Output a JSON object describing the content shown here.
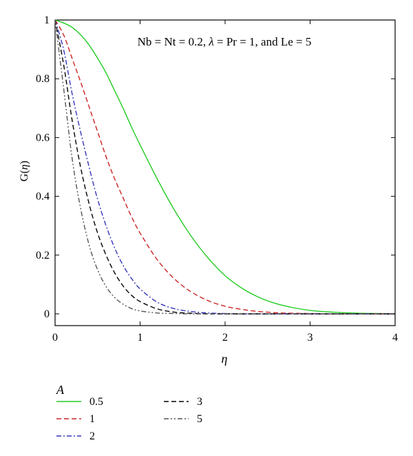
{
  "chart_data": {
    "type": "line",
    "annotation_parts": [
      "Nb = Nt = 0.2, ",
      "λ",
      " = Pr = 1, and Le = 5"
    ],
    "xlabel": "η",
    "ylabel_parts": [
      "G(",
      "η",
      ")"
    ],
    "xlim": [
      0,
      4
    ],
    "ylim": [
      -0.04,
      1.0
    ],
    "xticks": [
      0,
      1,
      2,
      3,
      4
    ],
    "yticks": [
      0,
      0.2,
      0.4,
      0.6,
      0.8,
      1
    ],
    "ytick_labels": [
      "0",
      "0.2",
      "0.4",
      "0.6",
      "0.8",
      "1"
    ],
    "grid": false,
    "legend_title": "A",
    "legend_placement": "bottom-left, below plot",
    "x": [
      0,
      0.1,
      0.2,
      0.3,
      0.4,
      0.5,
      0.6,
      0.7,
      0.8,
      0.9,
      1.0,
      1.2,
      1.4,
      1.6,
      1.8,
      2.0,
      2.2,
      2.4,
      2.6,
      2.8,
      3.0,
      3.2,
      3.4,
      3.6,
      3.8,
      4.0
    ],
    "series": [
      {
        "name": "0.5",
        "color": "#22cc22",
        "dash": "solid",
        "values": [
          1.0,
          0.99,
          0.975,
          0.95,
          0.915,
          0.87,
          0.82,
          0.76,
          0.7,
          0.635,
          0.575,
          0.46,
          0.355,
          0.265,
          0.19,
          0.13,
          0.087,
          0.056,
          0.035,
          0.021,
          0.012,
          0.007,
          0.004,
          0.002,
          0.001,
          0.0
        ]
      },
      {
        "name": "1",
        "color": "#cc2222",
        "dash": "dashed",
        "values": [
          1.0,
          0.95,
          0.87,
          0.79,
          0.705,
          0.62,
          0.535,
          0.46,
          0.395,
          0.33,
          0.275,
          0.185,
          0.12,
          0.075,
          0.045,
          0.026,
          0.015,
          0.008,
          0.004,
          0.002,
          0.001,
          0.0,
          0.0,
          0.0,
          0.0,
          0.0
        ]
      },
      {
        "name": "2",
        "color": "#3333bb",
        "dash": "dashdot",
        "values": [
          1.0,
          0.9,
          0.75,
          0.62,
          0.5,
          0.39,
          0.3,
          0.225,
          0.165,
          0.12,
          0.085,
          0.04,
          0.018,
          0.008,
          0.003,
          0.001,
          0.0,
          0.0,
          0.0,
          0.0,
          0.0,
          0.0,
          0.0,
          0.0,
          0.0,
          0.0
        ]
      },
      {
        "name": "3",
        "color": "#000000",
        "dash": "dashed",
        "values": [
          1.0,
          0.85,
          0.66,
          0.5,
          0.375,
          0.275,
          0.2,
          0.14,
          0.095,
          0.063,
          0.042,
          0.017,
          0.006,
          0.002,
          0.0,
          0.0,
          0.0,
          0.0,
          0.0,
          0.0,
          0.0,
          0.0,
          0.0,
          0.0,
          0.0,
          0.0
        ]
      },
      {
        "name": "5",
        "color": "#555555",
        "dash": "dashdotdot",
        "values": [
          1.0,
          0.77,
          0.53,
          0.36,
          0.235,
          0.15,
          0.093,
          0.056,
          0.033,
          0.018,
          0.01,
          0.003,
          0.001,
          0.0,
          0.0,
          0.0,
          0.0,
          0.0,
          0.0,
          0.0,
          0.0,
          0.0,
          0.0,
          0.0,
          0.0,
          0.0
        ]
      }
    ]
  }
}
